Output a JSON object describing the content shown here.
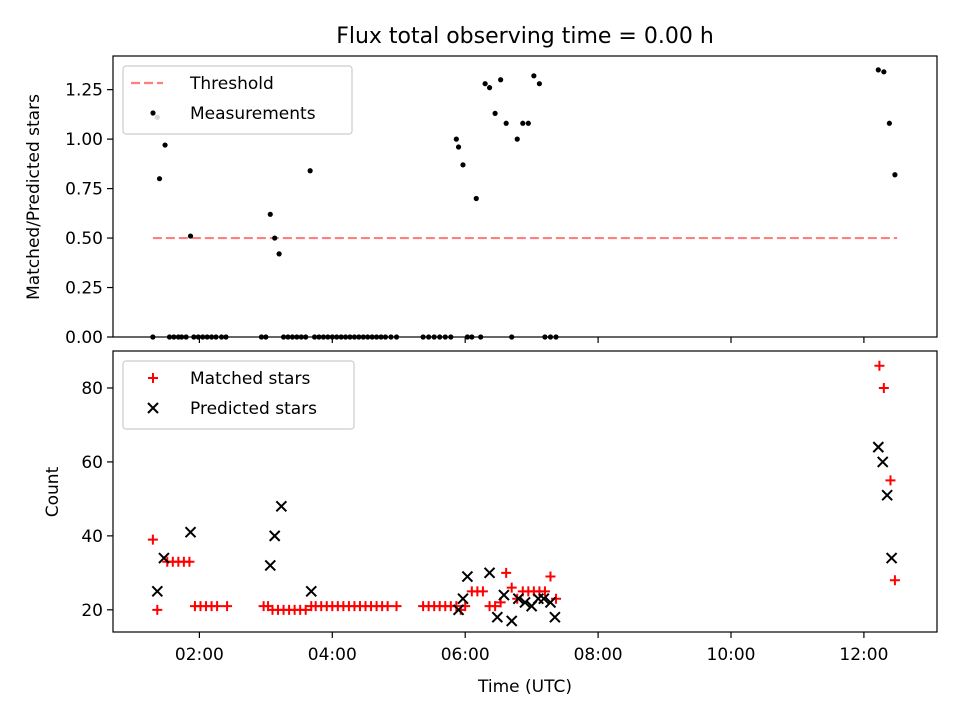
{
  "title": "Flux total observing time = 0.00 h",
  "chart_data": [
    {
      "type": "scatter",
      "panel": "top",
      "xlabel": "",
      "ylabel": "Matched/Predicted stars",
      "xlim": [
        "00:42",
        "13:06"
      ],
      "ylim": [
        0,
        1.42
      ],
      "yticks": [
        "0.00",
        "0.25",
        "0.50",
        "0.75",
        "1.00",
        "1.25"
      ],
      "xticks": [
        "02:00",
        "04:00",
        "06:00",
        "08:00",
        "10:00",
        "12:00"
      ],
      "grid": false,
      "legend": "top-left",
      "series": [
        {
          "name": "Threshold",
          "kind": "line",
          "style": "dashed",
          "color": "#ff7f7f",
          "x": [
            "01:18",
            "12:30"
          ],
          "y": [
            0.5,
            0.5
          ]
        },
        {
          "name": "Measurements",
          "kind": "scatter",
          "color": "#000000",
          "x": [
            "01:18",
            "01:22",
            "01:24",
            "01:29",
            "01:33",
            "01:37",
            "01:41",
            "01:44",
            "01:48",
            "01:52",
            "01:55",
            "01:59",
            "02:03",
            "02:07",
            "02:11",
            "02:15",
            "02:20",
            "02:24",
            "02:56",
            "03:00",
            "03:04",
            "03:08",
            "03:12",
            "03:16",
            "03:20",
            "03:24",
            "03:28",
            "03:32",
            "03:36",
            "03:40",
            "03:44",
            "03:48",
            "03:52",
            "03:56",
            "04:00",
            "04:04",
            "04:08",
            "04:12",
            "04:16",
            "04:20",
            "04:24",
            "04:28",
            "04:32",
            "04:36",
            "04:40",
            "04:44",
            "04:48",
            "04:53",
            "04:58",
            "05:22",
            "05:27",
            "05:32",
            "05:37",
            "05:42",
            "05:47",
            "05:52",
            "05:54",
            "05:58",
            "06:02",
            "06:06",
            "06:10",
            "06:14",
            "06:18",
            "06:22",
            "06:27",
            "06:32",
            "06:37",
            "06:42",
            "06:47",
            "06:52",
            "06:57",
            "07:02",
            "07:07",
            "07:12",
            "07:17",
            "07:22",
            "12:13",
            "12:18",
            "12:23",
            "12:28"
          ],
          "y": [
            0,
            1.11,
            0.8,
            0.97,
            0,
            0,
            0,
            0,
            0,
            0.51,
            0,
            0,
            0,
            0,
            0,
            0,
            0,
            0,
            0,
            0,
            0.62,
            0.5,
            0.42,
            0,
            0,
            0,
            0,
            0,
            0,
            0.84,
            0,
            0,
            0,
            0,
            0,
            0,
            0,
            0,
            0,
            0,
            0,
            0,
            0,
            0,
            0,
            0,
            0,
            0,
            0,
            0,
            0,
            0,
            0,
            0,
            0,
            1.0,
            0.96,
            0.87,
            0,
            0,
            0.7,
            0,
            1.28,
            1.26,
            1.13,
            1.3,
            1.08,
            0,
            1.0,
            1.08,
            1.08,
            1.32,
            1.28,
            0,
            0,
            0,
            1.35,
            1.34,
            1.08,
            0.82
          ]
        }
      ]
    },
    {
      "type": "scatter",
      "panel": "bottom",
      "xlabel": "Time (UTC)",
      "ylabel": "Count",
      "xlim": [
        "00:42",
        "13:06"
      ],
      "ylim": [
        14,
        90
      ],
      "yticks": [
        "20",
        "40",
        "60",
        "80"
      ],
      "xticks": [
        "02:00",
        "04:00",
        "06:00",
        "08:00",
        "10:00",
        "12:00"
      ],
      "grid": false,
      "legend": "top-left",
      "series": [
        {
          "name": "Matched stars",
          "marker": "+",
          "color": "#ff0000",
          "x": [
            "01:18",
            "01:22",
            "01:31",
            "01:36",
            "01:41",
            "01:46",
            "01:51",
            "01:56",
            "02:01",
            "02:06",
            "02:11",
            "02:16",
            "02:25",
            "02:58",
            "03:02",
            "03:06",
            "03:11",
            "03:16",
            "03:21",
            "03:26",
            "03:31",
            "03:36",
            "03:41",
            "03:45",
            "03:50",
            "03:55",
            "04:00",
            "04:05",
            "04:10",
            "04:15",
            "04:20",
            "04:25",
            "04:30",
            "04:35",
            "04:40",
            "04:45",
            "04:50",
            "04:58",
            "05:22",
            "05:27",
            "05:32",
            "05:37",
            "05:42",
            "05:47",
            "05:52",
            "05:56",
            "06:00",
            "06:06",
            "06:11",
            "06:16",
            "06:22",
            "06:27",
            "06:32",
            "06:37",
            "06:42",
            "06:47",
            "06:52",
            "06:57",
            "07:02",
            "07:07",
            "07:12",
            "07:17",
            "07:22",
            "12:14",
            "12:18",
            "12:24",
            "12:28"
          ],
          "y": [
            39,
            20,
            33,
            33,
            33,
            33,
            33,
            21,
            21,
            21,
            21,
            21,
            21,
            21,
            21,
            20,
            20,
            20,
            20,
            20,
            20,
            20,
            21,
            21,
            21,
            21,
            21,
            21,
            21,
            21,
            21,
            21,
            21,
            21,
            21,
            21,
            21,
            21,
            21,
            21,
            21,
            21,
            21,
            21,
            21,
            20,
            21,
            25,
            25,
            25,
            21,
            21,
            22,
            30,
            26,
            23,
            25,
            25,
            25,
            25,
            25,
            29,
            23,
            86,
            80,
            55,
            28
          ]
        },
        {
          "name": "Predicted stars",
          "marker": "x",
          "color": "#000000",
          "x": [
            "01:22",
            "01:28",
            "01:52",
            "03:04",
            "03:08",
            "03:14",
            "03:41",
            "05:54",
            "05:58",
            "06:02",
            "06:22",
            "06:29",
            "06:35",
            "06:42",
            "06:48",
            "06:54",
            "07:00",
            "07:06",
            "07:11",
            "07:17",
            "07:21",
            "12:13",
            "12:17",
            "12:21",
            "12:25"
          ],
          "y": [
            25,
            34,
            41,
            32,
            40,
            48,
            25,
            20,
            23,
            29,
            30,
            18,
            24,
            17,
            23,
            22,
            21,
            23,
            23,
            22,
            18,
            64,
            60,
            51,
            34
          ]
        }
      ]
    }
  ]
}
